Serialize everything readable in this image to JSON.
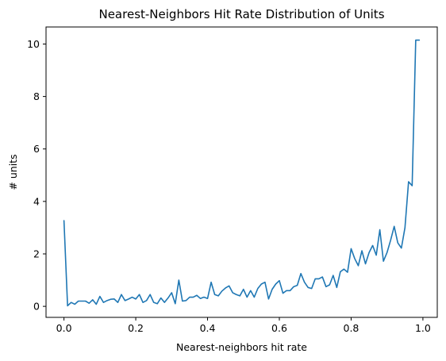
{
  "chart_data": {
    "type": "line",
    "title": "Nearest-Neighbors Hit Rate Distribution of Units",
    "xlabel": "Nearest-neighbors hit rate",
    "ylabel": "# units",
    "xlim": [
      -0.05,
      1.04
    ],
    "ylim": [
      -0.42,
      10.65
    ],
    "xticks": [
      0.0,
      0.2,
      0.4,
      0.6,
      0.8,
      1.0
    ],
    "xtick_labels": [
      "0.0",
      "0.2",
      "0.4",
      "0.6",
      "0.8",
      "1.0"
    ],
    "yticks": [
      0,
      2,
      4,
      6,
      8,
      10
    ],
    "ytick_labels": [
      "0",
      "2",
      "4",
      "6",
      "8",
      "10"
    ],
    "grid": false,
    "color": "#1f77b4",
    "x": [
      0.0,
      0.01,
      0.02,
      0.03,
      0.04,
      0.05,
      0.06,
      0.07,
      0.08,
      0.09,
      0.1,
      0.11,
      0.12,
      0.13,
      0.14,
      0.15,
      0.16,
      0.17,
      0.18,
      0.19,
      0.2,
      0.21,
      0.22,
      0.23,
      0.24,
      0.25,
      0.26,
      0.27,
      0.28,
      0.29,
      0.3,
      0.31,
      0.32,
      0.33,
      0.34,
      0.35,
      0.36,
      0.37,
      0.38,
      0.39,
      0.4,
      0.41,
      0.42,
      0.43,
      0.44,
      0.45,
      0.46,
      0.47,
      0.48,
      0.49,
      0.5,
      0.51,
      0.52,
      0.53,
      0.54,
      0.55,
      0.56,
      0.57,
      0.58,
      0.59,
      0.6,
      0.61,
      0.62,
      0.63,
      0.64,
      0.65,
      0.66,
      0.67,
      0.68,
      0.69,
      0.7,
      0.71,
      0.72,
      0.73,
      0.74,
      0.75,
      0.76,
      0.77,
      0.78,
      0.79,
      0.8,
      0.81,
      0.82,
      0.83,
      0.84,
      0.85,
      0.86,
      0.87,
      0.88,
      0.89,
      0.9,
      0.91,
      0.92,
      0.93,
      0.94,
      0.95,
      0.96,
      0.97,
      0.98,
      0.99
    ],
    "y": [
      3.27,
      0.02,
      0.15,
      0.08,
      0.2,
      0.2,
      0.2,
      0.12,
      0.25,
      0.08,
      0.38,
      0.15,
      0.22,
      0.27,
      0.28,
      0.15,
      0.45,
      0.22,
      0.28,
      0.35,
      0.28,
      0.45,
      0.15,
      0.22,
      0.45,
      0.15,
      0.1,
      0.32,
      0.15,
      0.32,
      0.52,
      0.1,
      1.0,
      0.2,
      0.22,
      0.35,
      0.35,
      0.42,
      0.3,
      0.35,
      0.3,
      0.92,
      0.45,
      0.4,
      0.58,
      0.7,
      0.78,
      0.52,
      0.45,
      0.4,
      0.65,
      0.35,
      0.6,
      0.35,
      0.68,
      0.85,
      0.92,
      0.28,
      0.65,
      0.85,
      0.98,
      0.5,
      0.6,
      0.6,
      0.75,
      0.8,
      1.25,
      0.92,
      0.72,
      0.68,
      1.05,
      1.05,
      1.12,
      0.75,
      0.82,
      1.18,
      0.72,
      1.32,
      1.42,
      1.3,
      2.2,
      1.82,
      1.55,
      2.12,
      1.62,
      2.05,
      2.32,
      1.95,
      2.92,
      1.72,
      2.05,
      2.52,
      3.05,
      2.42,
      2.22,
      3.0,
      4.75,
      4.6,
      10.15,
      10.15
    ]
  }
}
